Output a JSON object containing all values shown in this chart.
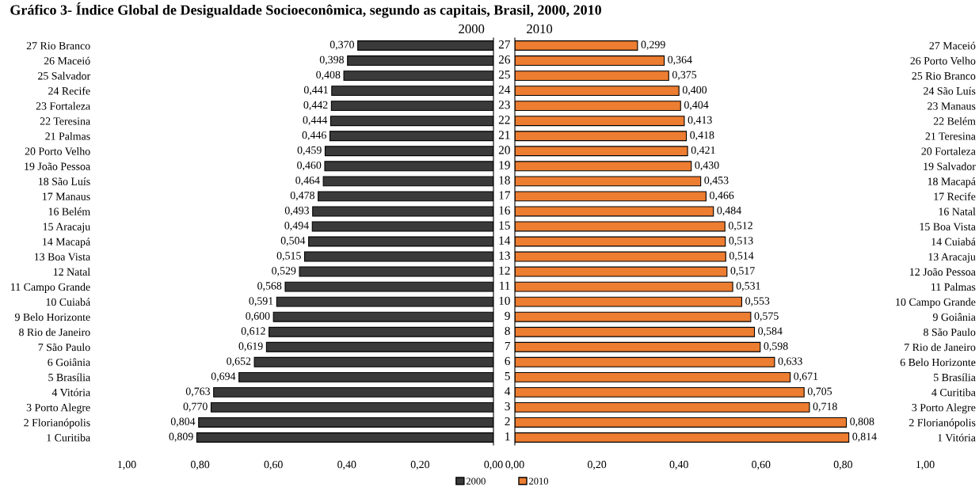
{
  "chart_data": [
    {
      "type": "bar",
      "orientation": "horizontal",
      "title": "Gráfico 3- Índice Global de Desigualdade Socioeconômica, segundo as capitais, Brasil, 2000, 2010",
      "subtitle": "2000",
      "categories": [
        "27 Rio Branco",
        "26 Maceió",
        "25 Salvador",
        "24 Recife",
        "23 Fortaleza",
        "22 Teresina",
        "21 Palmas",
        "20 Porto Velho",
        "19 João Pessoa",
        "18 São Luís",
        "17 Manaus",
        "16 Belém",
        "15 Aracaju",
        "14 Macapá",
        "13 Boa Vista",
        "12 Natal",
        "11 Campo Grande",
        "10 Cuiabá",
        "9 Belo Horizonte",
        "8 Rio de Janeiro",
        "7 São Paulo",
        "6 Goiânia",
        "5 Brasília",
        "4 Vitória",
        "3 Porto Alegre",
        "2 Florianópolis",
        "1 Curitiba"
      ],
      "series": [
        {
          "name": "2000",
          "color": "#3a3a3a",
          "values": [
            0.37,
            0.398,
            0.408,
            0.441,
            0.442,
            0.444,
            0.446,
            0.459,
            0.46,
            0.464,
            0.478,
            0.493,
            0.494,
            0.504,
            0.515,
            0.529,
            0.568,
            0.591,
            0.6,
            0.612,
            0.619,
            0.652,
            0.694,
            0.763,
            0.77,
            0.804,
            0.809
          ],
          "value_labels": [
            "0,370",
            "0,398",
            "0,408",
            "0,441",
            "0,442",
            "0,444",
            "0,446",
            "0,459",
            "0,460",
            "0,464",
            "0,478",
            "0,493",
            "0,494",
            "0,504",
            "0,515",
            "0,529",
            "0,568",
            "0,591",
            "0,600",
            "0,612",
            "0,619",
            "0,652",
            "0,694",
            "0,763",
            "0,770",
            "0,804",
            "0,809"
          ]
        }
      ],
      "xlim": [
        1.0,
        0.0
      ],
      "xticks": [
        {
          "value": 1.0,
          "label": "1,00"
        },
        {
          "value": 0.8,
          "label": "0,80"
        },
        {
          "value": 0.6,
          "label": "0,60"
        },
        {
          "value": 0.4,
          "label": "0,40"
        },
        {
          "value": 0.2,
          "label": "0,20"
        },
        {
          "value": 0.0,
          "label": "0,00"
        }
      ],
      "grid": false,
      "legend": "bottom"
    },
    {
      "type": "bar",
      "orientation": "horizontal",
      "subtitle": "2010",
      "categories": [
        "27 Maceió",
        "26 Porto Velho",
        "25 Rio Branco",
        "24 São Luís",
        "23 Manaus",
        "22 Belém",
        "21 Teresina",
        "20 Fortaleza",
        "19 Salvador",
        "18 Macapá",
        "17 Recife",
        "16 Natal",
        "15 Boa Vista",
        "14 Cuiabá",
        "13 Aracaju",
        "12 João Pessoa",
        "11 Palmas",
        "10 Campo Grande",
        "9 Goiânia",
        "8 São Paulo",
        "7 Rio de Janeiro",
        "6 Belo Horizonte",
        "5 Brasília",
        "4 Curitiba",
        "3 Porto Alegre",
        "2 Florianópolis",
        "1 Vitória"
      ],
      "series": [
        {
          "name": "2010",
          "color": "#ed7d31",
          "values": [
            0.299,
            0.364,
            0.375,
            0.4,
            0.404,
            0.413,
            0.418,
            0.421,
            0.43,
            0.453,
            0.466,
            0.484,
            0.512,
            0.513,
            0.514,
            0.517,
            0.531,
            0.553,
            0.575,
            0.584,
            0.598,
            0.633,
            0.671,
            0.705,
            0.718,
            0.808,
            0.814
          ],
          "value_labels": [
            "0,299",
            "0,364",
            "0,375",
            "0,400",
            "0,404",
            "0,413",
            "0,418",
            "0,421",
            "0,430",
            "0,453",
            "0,466",
            "0,484",
            "0,512",
            "0,513",
            "0,514",
            "0,517",
            "0,531",
            "0,553",
            "0,575",
            "0,584",
            "0,598",
            "0,633",
            "0,671",
            "0,705",
            "0,718",
            "0,808",
            "0,814"
          ]
        }
      ],
      "xlim": [
        0.0,
        1.0
      ],
      "xticks": [
        {
          "value": 0.0,
          "label": "0,00"
        },
        {
          "value": 0.2,
          "label": "0,20"
        },
        {
          "value": 0.4,
          "label": "0,40"
        },
        {
          "value": 0.6,
          "label": "0,60"
        },
        {
          "value": 0.8,
          "label": "0,80"
        },
        {
          "value": 1.0,
          "label": "1,00"
        }
      ],
      "annotations": [
        "27",
        "26",
        "25",
        "24",
        "23",
        "22",
        "21",
        "20",
        "19",
        "18",
        "17",
        "16",
        "15",
        "14",
        "13",
        "12",
        "11",
        "10",
        "9",
        "8",
        "7",
        "6",
        "5",
        "4",
        "3",
        "2",
        "1"
      ],
      "grid": false,
      "legend": "bottom"
    }
  ]
}
